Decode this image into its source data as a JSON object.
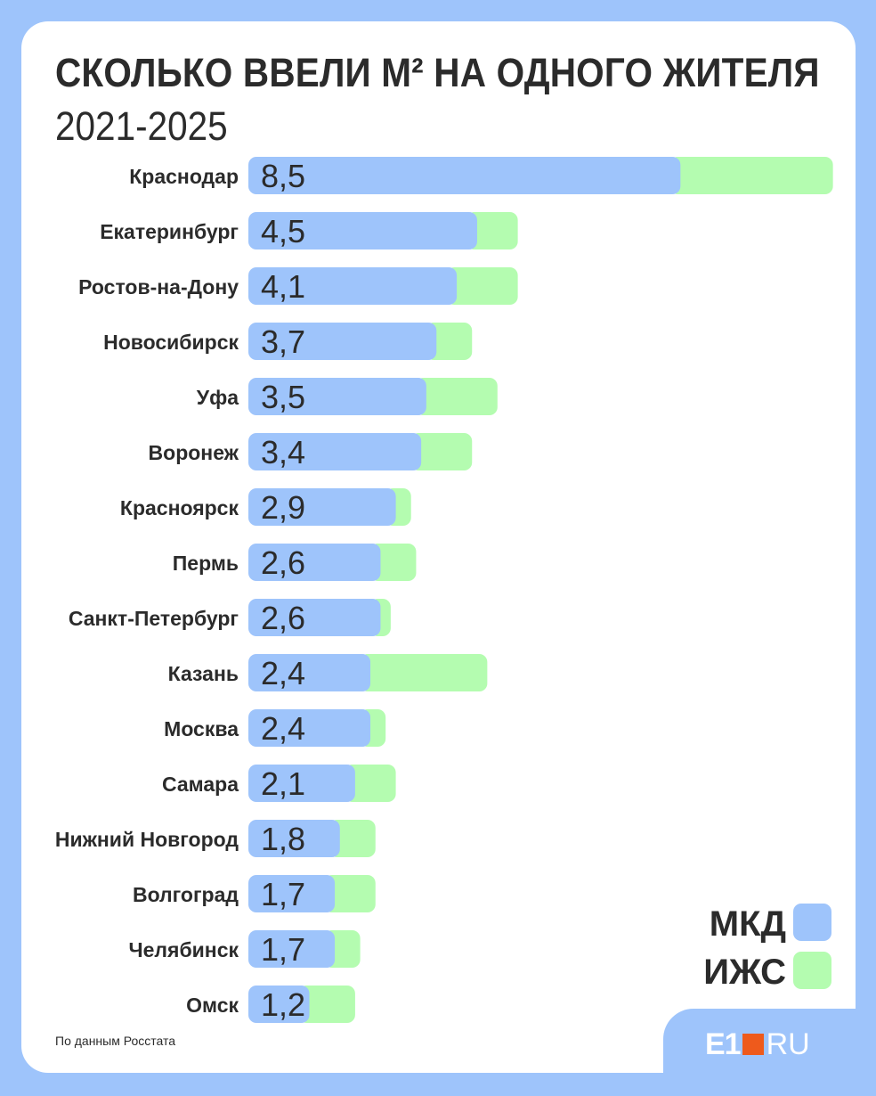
{
  "title": "СКОЛЬКО ВВЕЛИ М² НА ОДНОГО ЖИТЕЛЯ",
  "subtitle": "2021-2025",
  "source": "По данным Росстата",
  "logo": {
    "main": "E1",
    "suffix": "RU"
  },
  "colors": {
    "mkd": "#9ec4fb",
    "izhs": "#b4fcb0",
    "background": "#9ec4fb",
    "text": "#2b2b2b",
    "logo_accent": "#ee5a1c"
  },
  "chart_data": {
    "type": "bar",
    "orientation": "horizontal",
    "stacked": true,
    "title": "СКОЛЬКО ВВЕЛИ М² НА ОДНОГО ЖИТЕЛЯ",
    "subtitle": "2021-2025",
    "categories": [
      "Краснодар",
      "Екатеринбург",
      "Ростов-на-Дону",
      "Новосибирск",
      "Уфа",
      "Воронеж",
      "Красноярск",
      "Пермь",
      "Санкт-Петербург",
      "Казань",
      "Москва",
      "Самара",
      "Нижний Новгород",
      "Волгоград",
      "Челябинск",
      "Омск"
    ],
    "labels": [
      "8,5",
      "4,5",
      "4,1",
      "3,7",
      "3,5",
      "3,4",
      "2,9",
      "2,6",
      "2,6",
      "2,4",
      "2,4",
      "2,1",
      "1,8",
      "1,7",
      "1,7",
      "1,2"
    ],
    "series": [
      {
        "name": "МКД",
        "values": [
          8.5,
          4.5,
          4.1,
          3.7,
          3.5,
          3.4,
          2.9,
          2.6,
          2.6,
          2.4,
          2.4,
          2.1,
          1.8,
          1.7,
          1.7,
          1.2
        ]
      },
      {
        "name": "ИЖС",
        "values": [
          3.0,
          0.8,
          1.2,
          0.7,
          1.4,
          1.0,
          0.3,
          0.7,
          0.2,
          2.3,
          0.3,
          0.8,
          0.7,
          0.8,
          0.5,
          0.9
        ]
      }
    ],
    "xlim": [
      0,
      11.5
    ],
    "grid": false,
    "legend": "bottom-right"
  }
}
